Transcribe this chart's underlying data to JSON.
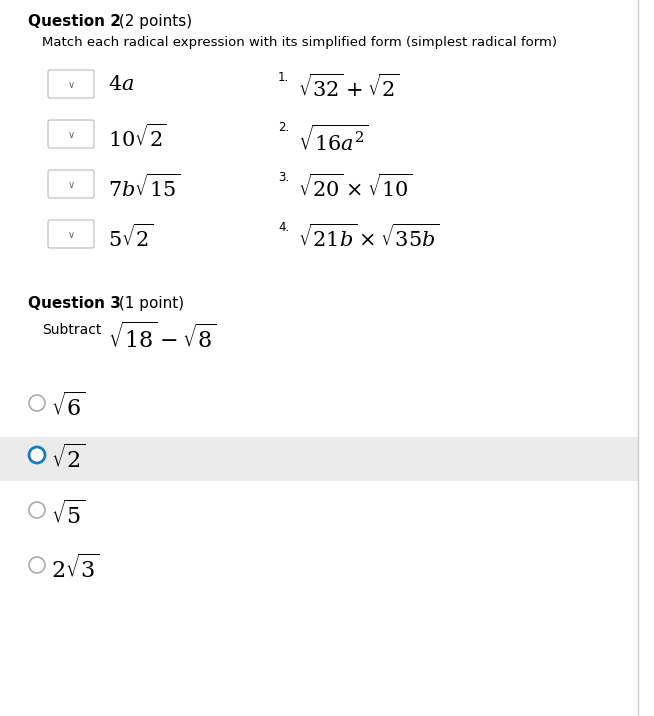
{
  "bg_color": "#ffffff",
  "highlight_color": "#ebebeb",
  "q2_title_bold": "Question 2",
  "q2_title_normal": " (2 points)",
  "q2_subtitle": "Match each radical expression with its simplified form (simplest radical form)",
  "left_labels_latex": [
    "$4a$",
    "$10\\sqrt{2}$",
    "$7b\\sqrt{15}$",
    "$5\\sqrt{2}$"
  ],
  "right_nums": [
    "1.",
    "2.",
    "3.",
    "4."
  ],
  "right_exprs_latex": [
    "$\\sqrt{32}+\\sqrt{2}$",
    "$\\sqrt{16a^2}$",
    "$\\sqrt{20}\\times\\sqrt{10}$",
    "$\\sqrt{21b}\\times\\sqrt{35b}$"
  ],
  "q3_title_bold": "Question 3",
  "q3_title_normal": " (1 point)",
  "q3_subtract_label": "Subtract",
  "q3_expression": "$\\sqrt{18}-\\sqrt{8}$",
  "q3_options_latex": [
    "$\\sqrt{6}$",
    "$\\sqrt{2}$",
    "$\\sqrt{5}$",
    "$2\\sqrt{3}$"
  ],
  "q3_options_selected": [
    false,
    true,
    false,
    false
  ],
  "q3_options_highlighted": [
    false,
    true,
    false,
    false
  ],
  "circle_color_normal": "#aaaaaa",
  "circle_color_selected": "#1a7abf",
  "border_color": "#bbbbbb",
  "right_border_color": "#cccccc",
  "figsize": [
    6.54,
    7.16
  ],
  "dpi": 100
}
